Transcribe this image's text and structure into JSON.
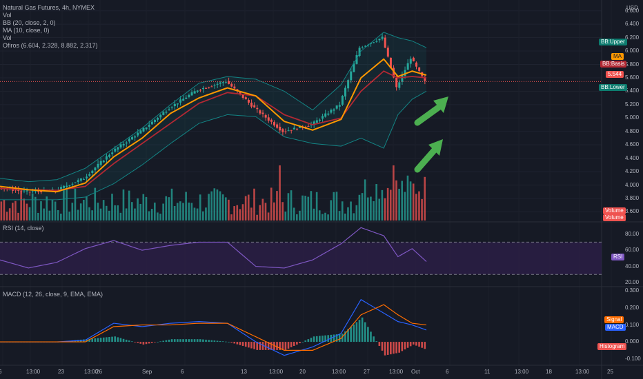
{
  "legend": {
    "main": [
      "Natural Gas Futures, 4h, NYMEX",
      "Vol",
      "BB (20, close, 2, 0)",
      "MA (10, close, 0)",
      "Vol",
      "Ofiros (6.604, 2.328, 8.882, 2.317)"
    ],
    "rsi": "RSI (14, close)",
    "macd": "MACD (12, 26, close, 9, EMA, EMA)"
  },
  "badges": {
    "bb_upper": "BB:Upper",
    "ma": "MA",
    "bb_basis": "BB:Basis",
    "last_price": "5.544",
    "bb_lower": "BB:Lower",
    "volume_1": "Volume",
    "volume_2": "Volume",
    "rsi": "RSI",
    "signal": "Signal",
    "macd": "MACD",
    "histogram": "Histogram"
  },
  "price_axis": {
    "unit": "USD",
    "ticks": [
      "6.600",
      "6.400",
      "6.200",
      "6.000",
      "5.800",
      "5.600",
      "5.400",
      "5.200",
      "5.000",
      "4.800",
      "4.600",
      "4.400",
      "4.200",
      "4.000",
      "3.800",
      "3.600"
    ]
  },
  "rsi_axis": {
    "ticks": [
      "80.00",
      "60.00",
      "40.00",
      "20.00"
    ]
  },
  "macd_axis": {
    "ticks": [
      "0.300",
      "0.200",
      "0.100",
      "0.000",
      "-0.100"
    ]
  },
  "time_axis": {
    "ticks": [
      "6",
      "13:00",
      "23",
      "13:00",
      "26",
      "Sep",
      "6",
      "13",
      "13:00",
      "20",
      "13:00",
      "27",
      "13:00",
      "Oct",
      "6",
      "11",
      "13:00",
      "18",
      "13:00",
      "25"
    ]
  },
  "colors": {
    "background": "#161a25",
    "candle_up": "#26a69a",
    "candle_down": "#ef5350",
    "ma": "#ff9800",
    "bb_basis": "#b22833",
    "bb_band": "#138484",
    "rsi_line": "#7e57c2",
    "rsi_fill": "#2a1f45",
    "macd_line": "#2962ff",
    "signal_line": "#ff6d00",
    "arrow": "#4caf50"
  },
  "chart_data": [
    {
      "type": "candlestick",
      "title": "Natural Gas Futures, 4h, NYMEX",
      "ylabel": "USD",
      "ylim": [
        3.45,
        6.7
      ],
      "price_series": [
        {
          "name": "MA",
          "x": [
            0,
            10,
            20,
            30,
            40,
            50,
            60,
            70,
            80,
            90,
            100,
            110,
            120,
            127,
            135,
            140,
            145,
            150
          ],
          "y": [
            3.98,
            3.93,
            3.9,
            4.03,
            4.42,
            4.7,
            5.07,
            5.3,
            5.45,
            5.33,
            4.95,
            4.82,
            4.98,
            5.6,
            5.88,
            5.62,
            5.7,
            5.64
          ]
        },
        {
          "name": "BB:Basis",
          "x": [
            0,
            10,
            20,
            30,
            40,
            50,
            60,
            70,
            80,
            90,
            100,
            110,
            120,
            127,
            135,
            140,
            145,
            150
          ],
          "y": [
            3.95,
            3.93,
            3.92,
            3.98,
            4.32,
            4.62,
            4.92,
            5.22,
            5.38,
            5.33,
            5.05,
            4.9,
            5.0,
            5.4,
            5.7,
            5.6,
            5.62,
            5.6
          ]
        },
        {
          "name": "BB:Upper",
          "x": [
            0,
            10,
            20,
            30,
            40,
            50,
            60,
            70,
            80,
            90,
            100,
            110,
            120,
            127,
            135,
            140,
            145,
            150
          ],
          "y": [
            4.1,
            4.05,
            4.08,
            4.25,
            4.55,
            4.85,
            5.2,
            5.52,
            5.62,
            5.58,
            5.4,
            5.12,
            5.5,
            6.0,
            6.28,
            6.2,
            6.15,
            6.05
          ]
        },
        {
          "name": "BB:Lower",
          "x": [
            0,
            10,
            20,
            30,
            40,
            50,
            60,
            70,
            80,
            90,
            100,
            110,
            120,
            127,
            135,
            140,
            145,
            150
          ],
          "y": [
            3.78,
            3.78,
            3.78,
            3.82,
            4.02,
            4.3,
            4.62,
            4.92,
            5.05,
            5.02,
            4.72,
            4.62,
            4.58,
            4.7,
            4.55,
            5.05,
            5.28,
            5.4
          ]
        },
        {
          "name": "Close",
          "x": [
            0,
            10,
            20,
            30,
            40,
            50,
            60,
            70,
            80,
            90,
            100,
            110,
            120,
            127,
            135,
            140,
            145,
            150
          ],
          "y": [
            3.96,
            3.9,
            3.92,
            4.1,
            4.5,
            4.8,
            5.15,
            5.42,
            5.55,
            5.15,
            4.8,
            4.9,
            5.2,
            6.05,
            6.2,
            5.45,
            5.9,
            5.54
          ]
        }
      ],
      "last_price": 5.544,
      "volume_peaks": [
        {
          "x": 98,
          "label": "13:00"
        },
        {
          "x": 138,
          "label": "Oct"
        }
      ]
    },
    {
      "type": "line",
      "title": "RSI (14, close)",
      "ylim": [
        20,
        90
      ],
      "bands": [
        30,
        70
      ],
      "series": [
        {
          "name": "RSI",
          "x": [
            0,
            10,
            20,
            30,
            40,
            50,
            60,
            70,
            80,
            90,
            100,
            110,
            120,
            127,
            135,
            140,
            145,
            150
          ],
          "y": [
            48,
            38,
            45,
            62,
            72,
            60,
            66,
            70,
            70,
            40,
            38,
            48,
            68,
            88,
            78,
            52,
            62,
            46
          ]
        }
      ]
    },
    {
      "type": "line",
      "title": "MACD (12, 26, close, 9, EMA, EMA)",
      "ylim": [
        -0.13,
        0.31
      ],
      "series": [
        {
          "name": "MACD",
          "x": [
            0,
            10,
            20,
            30,
            40,
            50,
            60,
            70,
            80,
            90,
            100,
            110,
            120,
            127,
            135,
            140,
            145,
            150
          ],
          "y": [
            0.0,
            0.0,
            0.0,
            0.01,
            0.11,
            0.09,
            0.11,
            0.12,
            0.11,
            0.0,
            -0.08,
            -0.03,
            0.05,
            0.25,
            0.17,
            0.12,
            0.1,
            0.07
          ]
        },
        {
          "name": "Signal",
          "x": [
            0,
            10,
            20,
            30,
            40,
            50,
            60,
            70,
            80,
            90,
            100,
            110,
            120,
            127,
            135,
            140,
            145,
            150
          ],
          "y": [
            0.0,
            0.0,
            0.0,
            0.0,
            0.09,
            0.1,
            0.1,
            0.11,
            0.11,
            0.03,
            -0.05,
            -0.05,
            0.02,
            0.16,
            0.22,
            0.16,
            0.11,
            0.1
          ]
        }
      ]
    }
  ]
}
